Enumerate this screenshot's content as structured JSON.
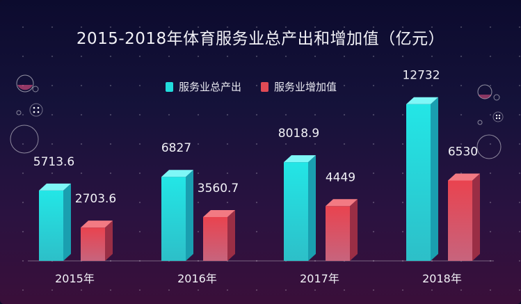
{
  "title": "2015-2018年体育服务业总产出和增加值（亿元）",
  "colors": {
    "series1": "#22dcdc",
    "series2": "#e04a55"
  },
  "chart_data": {
    "type": "bar",
    "title": "2015-2018年体育服务业总产出和增加值（亿元）",
    "categories": [
      "2015年",
      "2016年",
      "2017年",
      "2018年"
    ],
    "series": [
      {
        "name": "服务业总产出",
        "values": [
          5713.6,
          6827,
          8018.9,
          12732
        ],
        "labels": [
          "5713.6",
          "6827",
          "8018.9",
          "12732"
        ]
      },
      {
        "name": "服务业增加值",
        "values": [
          2703.6,
          3560.7,
          4449,
          6530
        ],
        "labels": [
          "2703.6",
          "3560.7",
          "4449",
          "6530"
        ]
      }
    ],
    "xlabel": "",
    "ylabel": "",
    "ylim": [
      0,
      13000
    ],
    "grid": false,
    "legend": "top-center"
  }
}
